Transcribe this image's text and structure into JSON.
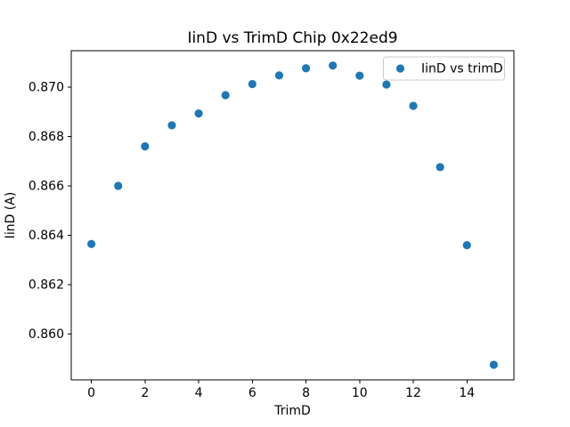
{
  "chart_data": {
    "type": "scatter",
    "title": "IinD vs TrimD Chip 0x22ed9",
    "xlabel": "TrimD",
    "ylabel": "IinD (A)",
    "legend": {
      "position": "upper right",
      "entries": [
        {
          "label": "IinD vs trimD",
          "marker": "circle",
          "color": "#1f77b4"
        }
      ]
    },
    "x": [
      0,
      1,
      2,
      3,
      4,
      5,
      6,
      7,
      8,
      9,
      10,
      11,
      12,
      13,
      14,
      15
    ],
    "series": [
      {
        "name": "IinD vs trimD",
        "color": "#1f77b4",
        "values": [
          0.86365,
          0.866,
          0.8676,
          0.86845,
          0.86893,
          0.86967,
          0.87012,
          0.87047,
          0.87076,
          0.87087,
          0.87046,
          0.8701,
          0.86924,
          0.86676,
          0.8636,
          0.85876
        ]
      }
    ],
    "xlim": [
      -0.75,
      15.75
    ],
    "ylim": [
      0.85815,
      0.87147
    ],
    "xticks": [
      0,
      2,
      4,
      6,
      8,
      10,
      12,
      14
    ],
    "xtick_labels": [
      "0",
      "2",
      "4",
      "6",
      "8",
      "10",
      "12",
      "14"
    ],
    "yticks": [
      0.86,
      0.862,
      0.864,
      0.866,
      0.868,
      0.87
    ],
    "ytick_labels": [
      "0.860",
      "0.862",
      "0.864",
      "0.866",
      "0.868",
      "0.870"
    ],
    "grid": false,
    "marker_size_px": 9.2,
    "colors": {
      "marker": "#1f77b4",
      "axes": "#000000",
      "background": "#ffffff",
      "legend_border": "#cccccc"
    }
  }
}
